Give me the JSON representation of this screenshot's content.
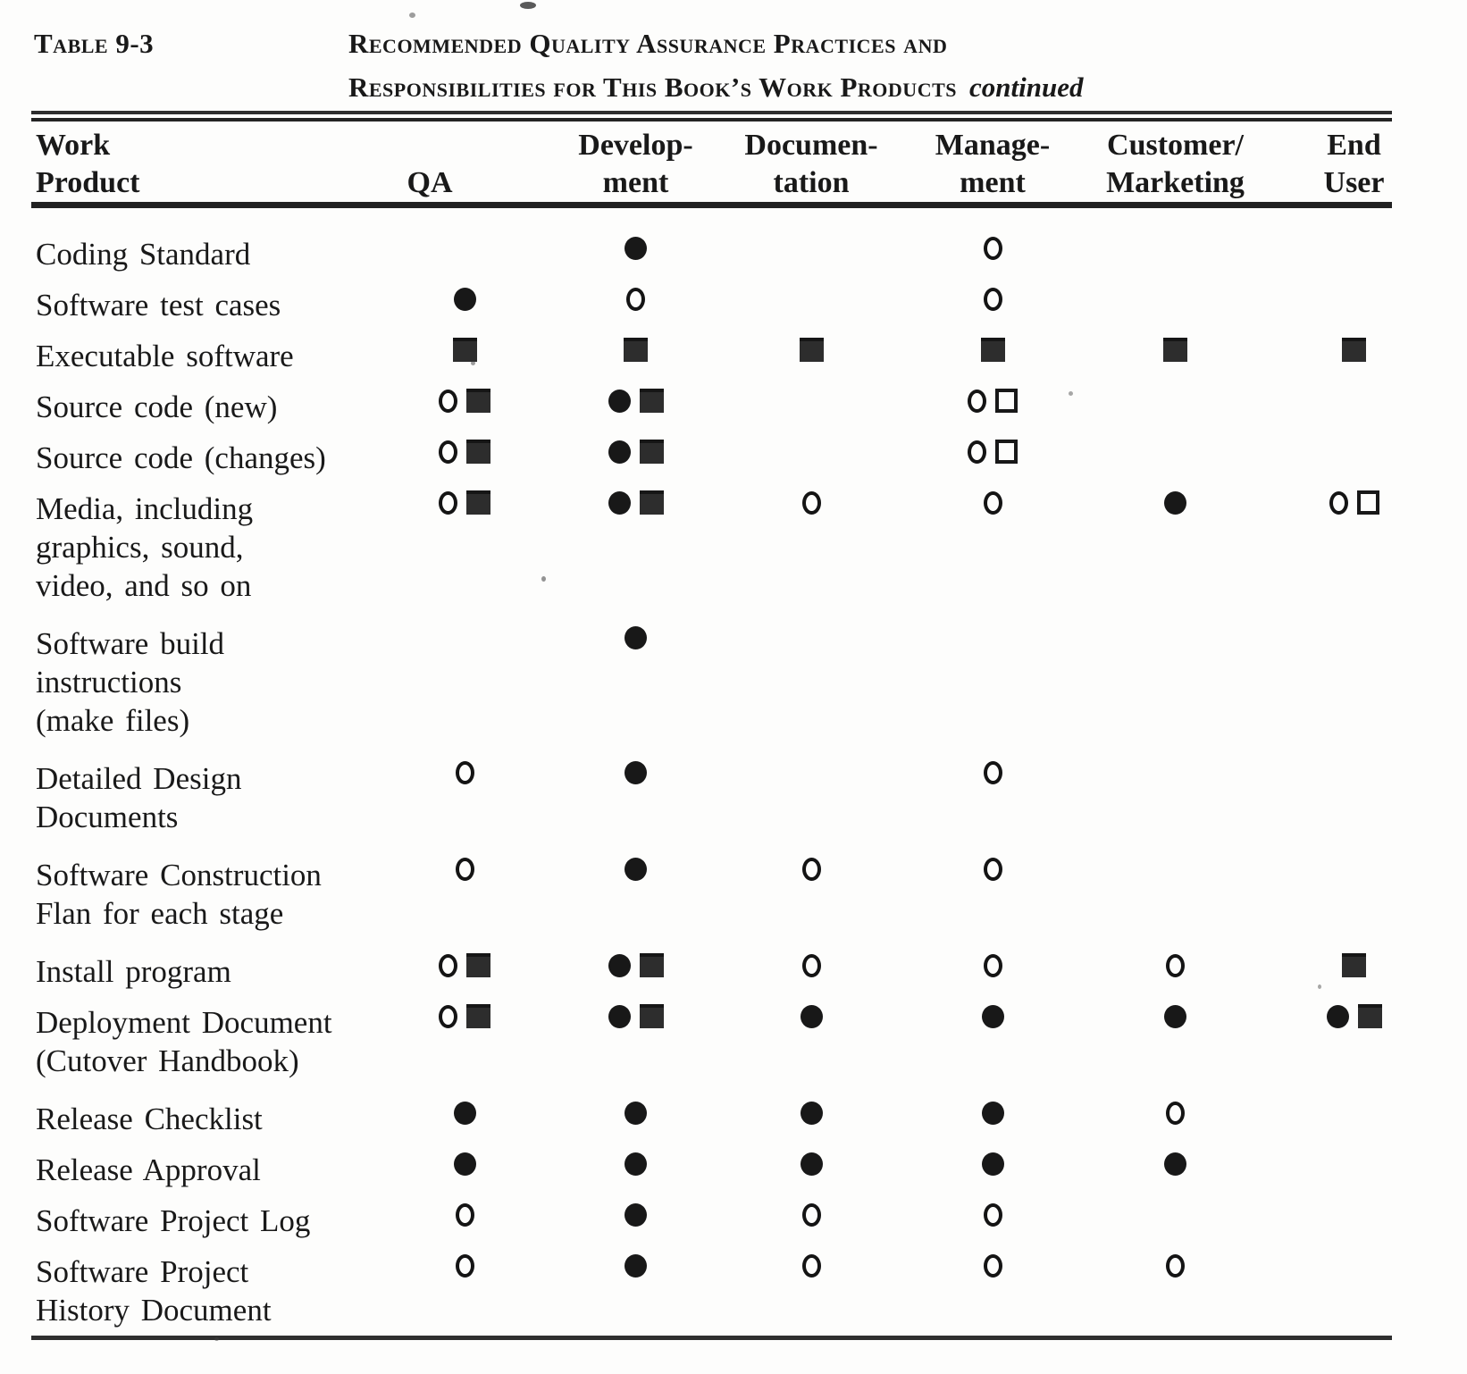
{
  "page": {
    "table_label": "Table 9-3",
    "title": {
      "line1": "Recommended Quality Assurance Practices and",
      "line2": "Responsibilities for This Book’s Work Products",
      "continued": "continued"
    }
  },
  "symbols_legend": {
    "filled-circle": "●",
    "open-circle": "○",
    "filled-square": "■",
    "open-square": "□"
  },
  "table": {
    "columns": [
      {
        "id": "work-product",
        "lines": [
          "Work",
          "Product"
        ]
      },
      {
        "id": "qa",
        "lines": [
          "QA"
        ]
      },
      {
        "id": "development",
        "lines": [
          "Develop-",
          "ment"
        ]
      },
      {
        "id": "documentation",
        "lines": [
          "Documen-",
          "tation"
        ]
      },
      {
        "id": "management",
        "lines": [
          "Manage-",
          "ment"
        ]
      },
      {
        "id": "customer-marketing",
        "lines": [
          "Customer/",
          "Marketing"
        ]
      },
      {
        "id": "end-user",
        "lines": [
          "End",
          "User"
        ]
      }
    ],
    "rows": [
      {
        "label_lines": [
          "Coding Standard"
        ],
        "cells": [
          [],
          [
            "filled-circle"
          ],
          [],
          [
            "open-circle"
          ],
          [],
          []
        ]
      },
      {
        "label_lines": [
          "Software test cases"
        ],
        "cells": [
          [
            "filled-circle"
          ],
          [
            "open-circle"
          ],
          [],
          [
            "open-circle"
          ],
          [],
          []
        ]
      },
      {
        "label_lines": [
          "Executable software"
        ],
        "cells": [
          [
            "filled-square"
          ],
          [
            "filled-square"
          ],
          [
            "filled-square"
          ],
          [
            "filled-square"
          ],
          [
            "filled-square"
          ],
          [
            "filled-square"
          ]
        ]
      },
      {
        "label_lines": [
          "Source code (new)"
        ],
        "cells": [
          [
            "open-circle",
            "filled-square"
          ],
          [
            "filled-circle",
            "filled-square"
          ],
          [],
          [
            "open-circle",
            "open-square"
          ],
          [],
          []
        ]
      },
      {
        "label_lines": [
          "Source code (changes)"
        ],
        "cells": [
          [
            "open-circle",
            "filled-square"
          ],
          [
            "filled-circle",
            "filled-square"
          ],
          [],
          [
            "open-circle",
            "open-square"
          ],
          [],
          []
        ]
      },
      {
        "label_lines": [
          "Media, including",
          "graphics, sound,",
          "video, and so on"
        ],
        "cells": [
          [
            "open-circle",
            "filled-square"
          ],
          [
            "filled-circle",
            "filled-square"
          ],
          [
            "open-circle"
          ],
          [
            "open-circle"
          ],
          [
            "filled-circle"
          ],
          [
            "open-circle",
            "open-square"
          ]
        ]
      },
      {
        "label_lines": [
          "Software build",
          "instructions",
          "(make files)"
        ],
        "cells": [
          [],
          [
            "filled-circle"
          ],
          [],
          [],
          [],
          []
        ]
      },
      {
        "label_lines": [
          "Detailed Design",
          "Documents"
        ],
        "cells": [
          [
            "open-circle"
          ],
          [
            "filled-circle"
          ],
          [],
          [
            "open-circle"
          ],
          [],
          []
        ]
      },
      {
        "label_lines": [
          "Software Construction",
          "Flan for each stage"
        ],
        "cells": [
          [
            "open-circle"
          ],
          [
            "filled-circle"
          ],
          [
            "open-circle"
          ],
          [
            "open-circle"
          ],
          [],
          []
        ]
      },
      {
        "label_lines": [
          "Install program"
        ],
        "cells": [
          [
            "open-circle",
            "filled-square"
          ],
          [
            "filled-circle",
            "filled-square"
          ],
          [
            "open-circle"
          ],
          [
            "open-circle"
          ],
          [
            "open-circle"
          ],
          [
            "filled-square"
          ]
        ]
      },
      {
        "label_lines": [
          "Deployment Document",
          "(Cutover Handbook)"
        ],
        "cells": [
          [
            "open-circle",
            "filled-square"
          ],
          [
            "filled-circle",
            "filled-square"
          ],
          [
            "filled-circle"
          ],
          [
            "filled-circle"
          ],
          [
            "filled-circle"
          ],
          [
            "filled-circle",
            "filled-square"
          ]
        ]
      },
      {
        "label_lines": [
          "Release Checklist"
        ],
        "cells": [
          [
            "filled-circle"
          ],
          [
            "filled-circle"
          ],
          [
            "filled-circle"
          ],
          [
            "filled-circle"
          ],
          [
            "open-circle"
          ],
          []
        ]
      },
      {
        "label_lines": [
          "Release Approval"
        ],
        "cells": [
          [
            "filled-circle"
          ],
          [
            "filled-circle"
          ],
          [
            "filled-circle"
          ],
          [
            "filled-circle"
          ],
          [
            "filled-circle"
          ],
          []
        ]
      },
      {
        "label_lines": [
          "Software Project Log"
        ],
        "cells": [
          [
            "open-circle"
          ],
          [
            "filled-circle"
          ],
          [
            "open-circle"
          ],
          [
            "open-circle"
          ],
          [],
          []
        ]
      },
      {
        "label_lines": [
          "Software Project",
          "History Document"
        ],
        "cells": [
          [
            "open-circle"
          ],
          [
            "filled-circle"
          ],
          [
            "open-circle"
          ],
          [
            "open-circle"
          ],
          [
            "open-circle"
          ],
          []
        ]
      }
    ]
  }
}
